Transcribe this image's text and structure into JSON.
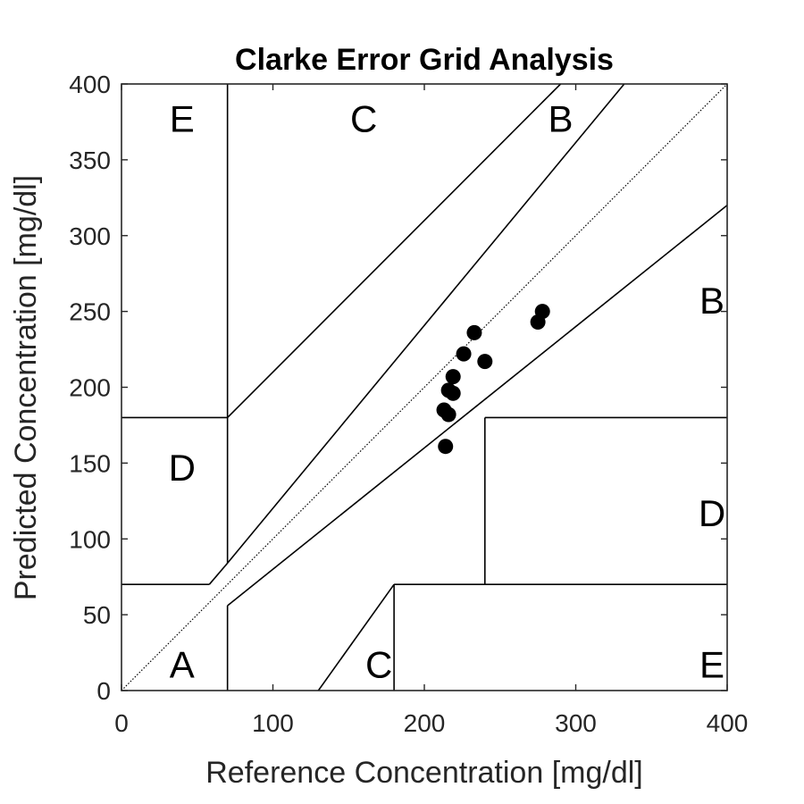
{
  "chart_data": {
    "type": "scatter",
    "title": "Clarke Error Grid Analysis",
    "xlabel": "Reference Concentration [mg/dl]",
    "ylabel": "Predicted Concentration [mg/dl]",
    "xlim": [
      0,
      400
    ],
    "ylim": [
      0,
      400
    ],
    "xticks": [
      "0",
      "100",
      "200",
      "300",
      "400"
    ],
    "yticks": [
      "0",
      "50",
      "100",
      "150",
      "200",
      "250",
      "300",
      "350",
      "400"
    ],
    "grid": false,
    "points": [
      {
        "x": 214,
        "y": 161
      },
      {
        "x": 213,
        "y": 185
      },
      {
        "x": 216,
        "y": 182
      },
      {
        "x": 216,
        "y": 198
      },
      {
        "x": 219,
        "y": 196
      },
      {
        "x": 219,
        "y": 207
      },
      {
        "x": 226,
        "y": 222
      },
      {
        "x": 233,
        "y": 236
      },
      {
        "x": 240,
        "y": 217
      },
      {
        "x": 275,
        "y": 243
      },
      {
        "x": 278,
        "y": 250
      }
    ],
    "zone_lines": [
      [
        [
          0,
          0
        ],
        [
          400,
          400
        ]
      ],
      [
        [
          0,
          180
        ],
        [
          70,
          180
        ]
      ],
      [
        [
          70,
          180
        ],
        [
          290,
          400
        ]
      ],
      [
        [
          70,
          84
        ],
        [
          70,
          400
        ]
      ],
      [
        [
          70,
          84
        ],
        [
          332,
          400
        ]
      ],
      [
        [
          0,
          70
        ],
        [
          58,
          70
        ]
      ],
      [
        [
          58,
          70
        ],
        [
          70,
          84
        ]
      ],
      [
        [
          70,
          56
        ],
        [
          400,
          320
        ]
      ],
      [
        [
          70,
          0
        ],
        [
          70,
          56
        ]
      ],
      [
        [
          130,
          0
        ],
        [
          180,
          70
        ]
      ],
      [
        [
          180,
          70
        ],
        [
          400,
          70
        ]
      ],
      [
        [
          180,
          0
        ],
        [
          180,
          70
        ]
      ],
      [
        [
          240,
          70
        ],
        [
          240,
          180
        ]
      ],
      [
        [
          240,
          180
        ],
        [
          400,
          180
        ]
      ]
    ],
    "zone_labels": [
      {
        "text": "E",
        "x": 40,
        "y": 375
      },
      {
        "text": "C",
        "x": 160,
        "y": 375
      },
      {
        "text": "B",
        "x": 290,
        "y": 375
      },
      {
        "text": "B",
        "x": 390,
        "y": 255
      },
      {
        "text": "D",
        "x": 40,
        "y": 145
      },
      {
        "text": "D",
        "x": 390,
        "y": 115
      },
      {
        "text": "A",
        "x": 40,
        "y": 15
      },
      {
        "text": "C",
        "x": 170,
        "y": 15
      },
      {
        "text": "E",
        "x": 390,
        "y": 15
      }
    ],
    "colors": {
      "markers": "#000000",
      "lines": "#000000",
      "axes": "#262626",
      "diagonal": "#000000"
    }
  }
}
